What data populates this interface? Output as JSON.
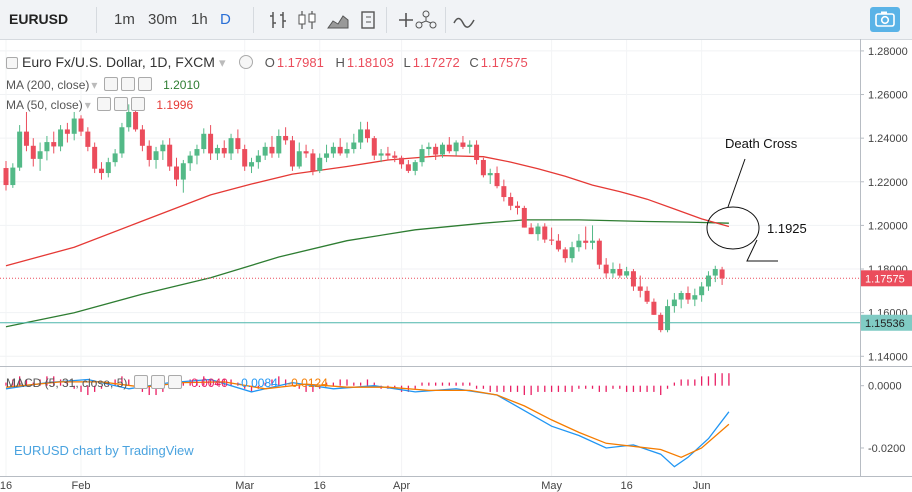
{
  "toolbar": {
    "symbol": "EURUSD",
    "timeframes": [
      "1m",
      "30m",
      "1h",
      "D"
    ],
    "active_timeframe": "D",
    "tools": [
      "bar-style-icon",
      "candle-style-icon",
      "area-style-icon",
      "indicators-icon",
      "compare-icon",
      "templates-icon",
      "line-tool-icon"
    ],
    "camera_icon": "camera-icon"
  },
  "legend": {
    "title": "Euro Fx/U.S. Dollar, 1D, FXCM",
    "open_label": "O",
    "open": "1.17981",
    "high_label": "H",
    "high": "1.18103",
    "low_label": "L",
    "low": "1.17272",
    "close_label": "C",
    "close": "1.17575",
    "ma200_label": "MA (200, close)",
    "ma200_value": "1.2010",
    "ma50_label": "MA (50, close)",
    "ma50_value": "1.1996",
    "macd_label": "MACD (5, 31, close, 5)",
    "macd_hist": "0.0040",
    "macd_line": "-0.0084",
    "macd_signal": "-0.0124"
  },
  "watermark": "EURUSD chart by TradingView",
  "annotations": {
    "death_cross": "Death Cross",
    "level": "1.1925"
  },
  "colors": {
    "up": "#53b987",
    "down": "#eb4d5c",
    "ma50": "#e53935",
    "ma200": "#2e7d32",
    "macd_line": "#2196f3",
    "macd_signal": "#f57c00",
    "support": "#4db6ac",
    "price_tag": "#eb4d5c",
    "support_tag": "#80cbc4"
  },
  "chart_data": {
    "type": "candlestick",
    "price_axis": {
      "ticks": [
        "1.28000",
        "1.26000",
        "1.24000",
        "1.22000",
        "1.20000",
        "1.18000",
        "1.16000",
        "1.14000"
      ],
      "ylim": [
        1.136,
        1.285
      ]
    },
    "last_price": "1.17575",
    "support_level": "1.15536",
    "macd_axis": {
      "ticks": [
        "0.0000",
        "-0.0200"
      ],
      "ylim": [
        -0.029,
        0.006
      ]
    },
    "time_axis": {
      "ticks": [
        {
          "label": "16",
          "i": 0
        },
        {
          "label": "Feb",
          "i": 11
        },
        {
          "label": "Mar",
          "i": 35
        },
        {
          "label": "16",
          "i": 46
        },
        {
          "label": "Apr",
          "i": 58
        },
        {
          "label": "May",
          "i": 80
        },
        {
          "label": "16",
          "i": 91
        },
        {
          "label": "Jun",
          "i": 102
        }
      ]
    },
    "candles": [
      {
        "o": 1.2263,
        "h": 1.2295,
        "l": 1.216,
        "c": 1.2185
      },
      {
        "o": 1.2185,
        "h": 1.2285,
        "l": 1.2172,
        "c": 1.2265
      },
      {
        "o": 1.2265,
        "h": 1.246,
        "l": 1.225,
        "c": 1.243
      },
      {
        "o": 1.243,
        "h": 1.252,
        "l": 1.234,
        "c": 1.2365
      },
      {
        "o": 1.2365,
        "h": 1.24,
        "l": 1.227,
        "c": 1.2305
      },
      {
        "o": 1.2305,
        "h": 1.238,
        "l": 1.225,
        "c": 1.234
      },
      {
        "o": 1.234,
        "h": 1.241,
        "l": 1.2298,
        "c": 1.2382
      },
      {
        "o": 1.2382,
        "h": 1.243,
        "l": 1.233,
        "c": 1.2362
      },
      {
        "o": 1.2362,
        "h": 1.246,
        "l": 1.234,
        "c": 1.244
      },
      {
        "o": 1.244,
        "h": 1.247,
        "l": 1.238,
        "c": 1.242
      },
      {
        "o": 1.242,
        "h": 1.252,
        "l": 1.239,
        "c": 1.249
      },
      {
        "o": 1.249,
        "h": 1.2505,
        "l": 1.241,
        "c": 1.243
      },
      {
        "o": 1.243,
        "h": 1.245,
        "l": 1.234,
        "c": 1.236
      },
      {
        "o": 1.236,
        "h": 1.238,
        "l": 1.224,
        "c": 1.226
      },
      {
        "o": 1.226,
        "h": 1.229,
        "l": 1.221,
        "c": 1.224
      },
      {
        "o": 1.224,
        "h": 1.231,
        "l": 1.222,
        "c": 1.229
      },
      {
        "o": 1.229,
        "h": 1.235,
        "l": 1.227,
        "c": 1.233
      },
      {
        "o": 1.233,
        "h": 1.247,
        "l": 1.231,
        "c": 1.245
      },
      {
        "o": 1.245,
        "h": 1.2555,
        "l": 1.243,
        "c": 1.252
      },
      {
        "o": 1.252,
        "h": 1.254,
        "l": 1.243,
        "c": 1.244
      },
      {
        "o": 1.244,
        "h": 1.246,
        "l": 1.234,
        "c": 1.2365
      },
      {
        "o": 1.2365,
        "h": 1.239,
        "l": 1.227,
        "c": 1.23
      },
      {
        "o": 1.23,
        "h": 1.236,
        "l": 1.226,
        "c": 1.234
      },
      {
        "o": 1.234,
        "h": 1.239,
        "l": 1.23,
        "c": 1.237
      },
      {
        "o": 1.237,
        "h": 1.24,
        "l": 1.225,
        "c": 1.227
      },
      {
        "o": 1.227,
        "h": 1.231,
        "l": 1.218,
        "c": 1.221
      },
      {
        "o": 1.221,
        "h": 1.23,
        "l": 1.215,
        "c": 1.2285
      },
      {
        "o": 1.2285,
        "h": 1.234,
        "l": 1.225,
        "c": 1.232
      },
      {
        "o": 1.232,
        "h": 1.237,
        "l": 1.228,
        "c": 1.235
      },
      {
        "o": 1.235,
        "h": 1.2445,
        "l": 1.233,
        "c": 1.242
      },
      {
        "o": 1.242,
        "h": 1.246,
        "l": 1.23,
        "c": 1.233
      },
      {
        "o": 1.233,
        "h": 1.237,
        "l": 1.23,
        "c": 1.2355
      },
      {
        "o": 1.2355,
        "h": 1.239,
        "l": 1.231,
        "c": 1.233
      },
      {
        "o": 1.233,
        "h": 1.242,
        "l": 1.23,
        "c": 1.24
      },
      {
        "o": 1.24,
        "h": 1.244,
        "l": 1.233,
        "c": 1.235
      },
      {
        "o": 1.235,
        "h": 1.237,
        "l": 1.225,
        "c": 1.227
      },
      {
        "o": 1.227,
        "h": 1.231,
        "l": 1.224,
        "c": 1.229
      },
      {
        "o": 1.229,
        "h": 1.2345,
        "l": 1.226,
        "c": 1.232
      },
      {
        "o": 1.232,
        "h": 1.238,
        "l": 1.23,
        "c": 1.236
      },
      {
        "o": 1.236,
        "h": 1.241,
        "l": 1.231,
        "c": 1.233
      },
      {
        "o": 1.233,
        "h": 1.244,
        "l": 1.231,
        "c": 1.241
      },
      {
        "o": 1.241,
        "h": 1.245,
        "l": 1.237,
        "c": 1.239
      },
      {
        "o": 1.239,
        "h": 1.241,
        "l": 1.225,
        "c": 1.227
      },
      {
        "o": 1.227,
        "h": 1.238,
        "l": 1.226,
        "c": 1.234
      },
      {
        "o": 1.234,
        "h": 1.237,
        "l": 1.231,
        "c": 1.233
      },
      {
        "o": 1.233,
        "h": 1.235,
        "l": 1.223,
        "c": 1.225
      },
      {
        "o": 1.225,
        "h": 1.233,
        "l": 1.224,
        "c": 1.231
      },
      {
        "o": 1.231,
        "h": 1.237,
        "l": 1.229,
        "c": 1.233
      },
      {
        "o": 1.233,
        "h": 1.238,
        "l": 1.231,
        "c": 1.236
      },
      {
        "o": 1.236,
        "h": 1.24,
        "l": 1.232,
        "c": 1.233
      },
      {
        "o": 1.233,
        "h": 1.238,
        "l": 1.231,
        "c": 1.235
      },
      {
        "o": 1.235,
        "h": 1.242,
        "l": 1.233,
        "c": 1.238
      },
      {
        "o": 1.238,
        "h": 1.2475,
        "l": 1.235,
        "c": 1.244
      },
      {
        "o": 1.244,
        "h": 1.2475,
        "l": 1.238,
        "c": 1.24
      },
      {
        "o": 1.24,
        "h": 1.241,
        "l": 1.23,
        "c": 1.232
      },
      {
        "o": 1.232,
        "h": 1.235,
        "l": 1.229,
        "c": 1.233
      },
      {
        "o": 1.233,
        "h": 1.236,
        "l": 1.23,
        "c": 1.232
      },
      {
        "o": 1.232,
        "h": 1.234,
        "l": 1.229,
        "c": 1.231
      },
      {
        "o": 1.231,
        "h": 1.232,
        "l": 1.226,
        "c": 1.228
      },
      {
        "o": 1.228,
        "h": 1.23,
        "l": 1.224,
        "c": 1.225
      },
      {
        "o": 1.225,
        "h": 1.23,
        "l": 1.223,
        "c": 1.229
      },
      {
        "o": 1.229,
        "h": 1.237,
        "l": 1.227,
        "c": 1.235
      },
      {
        "o": 1.235,
        "h": 1.238,
        "l": 1.232,
        "c": 1.236
      },
      {
        "o": 1.236,
        "h": 1.2375,
        "l": 1.23,
        "c": 1.2325
      },
      {
        "o": 1.2325,
        "h": 1.238,
        "l": 1.231,
        "c": 1.237
      },
      {
        "o": 1.237,
        "h": 1.2405,
        "l": 1.233,
        "c": 1.234
      },
      {
        "o": 1.234,
        "h": 1.239,
        "l": 1.232,
        "c": 1.238
      },
      {
        "o": 1.238,
        "h": 1.241,
        "l": 1.235,
        "c": 1.236
      },
      {
        "o": 1.236,
        "h": 1.239,
        "l": 1.233,
        "c": 1.237
      },
      {
        "o": 1.237,
        "h": 1.239,
        "l": 1.228,
        "c": 1.23
      },
      {
        "o": 1.23,
        "h": 1.231,
        "l": 1.222,
        "c": 1.223
      },
      {
        "o": 1.223,
        "h": 1.226,
        "l": 1.219,
        "c": 1.224
      },
      {
        "o": 1.224,
        "h": 1.227,
        "l": 1.217,
        "c": 1.218
      },
      {
        "o": 1.218,
        "h": 1.221,
        "l": 1.211,
        "c": 1.213
      },
      {
        "o": 1.213,
        "h": 1.215,
        "l": 1.207,
        "c": 1.209
      },
      {
        "o": 1.209,
        "h": 1.211,
        "l": 1.205,
        "c": 1.208
      },
      {
        "o": 1.208,
        "h": 1.209,
        "l": 1.199,
        "c": 1.199
      },
      {
        "o": 1.199,
        "h": 1.201,
        "l": 1.196,
        "c": 1.196
      },
      {
        "o": 1.196,
        "h": 1.201,
        "l": 1.193,
        "c": 1.1995
      },
      {
        "o": 1.1995,
        "h": 1.201,
        "l": 1.192,
        "c": 1.1935
      },
      {
        "o": 1.1935,
        "h": 1.199,
        "l": 1.191,
        "c": 1.193
      },
      {
        "o": 1.193,
        "h": 1.196,
        "l": 1.188,
        "c": 1.189
      },
      {
        "o": 1.189,
        "h": 1.19,
        "l": 1.183,
        "c": 1.185
      },
      {
        "o": 1.185,
        "h": 1.1925,
        "l": 1.183,
        "c": 1.19
      },
      {
        "o": 1.19,
        "h": 1.196,
        "l": 1.188,
        "c": 1.193
      },
      {
        "o": 1.193,
        "h": 1.1995,
        "l": 1.189,
        "c": 1.192
      },
      {
        "o": 1.192,
        "h": 1.2,
        "l": 1.189,
        "c": 1.193
      },
      {
        "o": 1.193,
        "h": 1.194,
        "l": 1.18,
        "c": 1.182
      },
      {
        "o": 1.182,
        "h": 1.185,
        "l": 1.176,
        "c": 1.178
      },
      {
        "o": 1.178,
        "h": 1.183,
        "l": 1.176,
        "c": 1.18
      },
      {
        "o": 1.18,
        "h": 1.1825,
        "l": 1.176,
        "c": 1.177
      },
      {
        "o": 1.177,
        "h": 1.181,
        "l": 1.176,
        "c": 1.179
      },
      {
        "o": 1.179,
        "h": 1.18,
        "l": 1.17,
        "c": 1.172
      },
      {
        "o": 1.172,
        "h": 1.177,
        "l": 1.167,
        "c": 1.17
      },
      {
        "o": 1.17,
        "h": 1.172,
        "l": 1.164,
        "c": 1.165
      },
      {
        "o": 1.165,
        "h": 1.1665,
        "l": 1.159,
        "c": 1.159
      },
      {
        "o": 1.159,
        "h": 1.16,
        "l": 1.151,
        "c": 1.152
      },
      {
        "o": 1.152,
        "h": 1.166,
        "l": 1.151,
        "c": 1.163
      },
      {
        "o": 1.163,
        "h": 1.169,
        "l": 1.16,
        "c": 1.166
      },
      {
        "o": 1.166,
        "h": 1.17,
        "l": 1.162,
        "c": 1.169
      },
      {
        "o": 1.169,
        "h": 1.172,
        "l": 1.164,
        "c": 1.166
      },
      {
        "o": 1.166,
        "h": 1.171,
        "l": 1.163,
        "c": 1.168
      },
      {
        "o": 1.168,
        "h": 1.174,
        "l": 1.165,
        "c": 1.172
      },
      {
        "o": 1.172,
        "h": 1.179,
        "l": 1.17,
        "c": 1.177
      },
      {
        "o": 1.177,
        "h": 1.1815,
        "l": 1.174,
        "c": 1.18
      },
      {
        "o": 1.1798,
        "h": 1.181,
        "l": 1.1727,
        "c": 1.1757
      }
    ],
    "ma50": [
      [
        0,
        1.1815
      ],
      [
        10,
        1.19
      ],
      [
        20,
        1.202
      ],
      [
        30,
        1.214
      ],
      [
        36,
        1.219
      ],
      [
        42,
        1.2235
      ],
      [
        50,
        1.227
      ],
      [
        56,
        1.23
      ],
      [
        64,
        1.232
      ],
      [
        70,
        1.2315
      ],
      [
        74,
        1.229
      ],
      [
        78,
        1.226
      ],
      [
        82,
        1.2225
      ],
      [
        86,
        1.2185
      ],
      [
        90,
        1.2155
      ],
      [
        94,
        1.212
      ],
      [
        98,
        1.2075
      ],
      [
        102,
        1.203
      ],
      [
        106,
        1.1995
      ]
    ],
    "ma200": [
      [
        0,
        1.1535
      ],
      [
        10,
        1.16
      ],
      [
        20,
        1.1685
      ],
      [
        30,
        1.176
      ],
      [
        40,
        1.1855
      ],
      [
        50,
        1.193
      ],
      [
        60,
        1.198
      ],
      [
        70,
        1.201
      ],
      [
        76,
        1.2025
      ],
      [
        84,
        1.2025
      ],
      [
        94,
        1.2018
      ],
      [
        100,
        1.2015
      ],
      [
        106,
        1.201
      ]
    ],
    "macd": [
      [
        0,
        -0.001
      ],
      [
        6,
        0.001
      ],
      [
        12,
        0.002
      ],
      [
        18,
        -0.001
      ],
      [
        24,
        0.001
      ],
      [
        30,
        0.002
      ],
      [
        36,
        -0.002
      ],
      [
        42,
        0.001
      ],
      [
        48,
        -0.001
      ],
      [
        54,
        0.0
      ],
      [
        60,
        -0.002
      ],
      [
        66,
        -0.001
      ],
      [
        72,
        -0.003
      ],
      [
        76,
        -0.008
      ],
      [
        80,
        -0.013
      ],
      [
        84,
        -0.016
      ],
      [
        88,
        -0.02
      ],
      [
        92,
        -0.019
      ],
      [
        96,
        -0.022
      ],
      [
        98,
        -0.026
      ],
      [
        100,
        -0.023
      ],
      [
        103,
        -0.017
      ],
      [
        106,
        -0.0084
      ]
    ],
    "macd_signal": [
      [
        0,
        -0.0005
      ],
      [
        8,
        0.0012
      ],
      [
        14,
        0.0012
      ],
      [
        20,
        -0.0005
      ],
      [
        26,
        0.001
      ],
      [
        32,
        0.0012
      ],
      [
        38,
        -0.001
      ],
      [
        44,
        0.0005
      ],
      [
        50,
        -0.0005
      ],
      [
        56,
        -0.0005
      ],
      [
        62,
        -0.0015
      ],
      [
        68,
        -0.0015
      ],
      [
        72,
        -0.003
      ],
      [
        76,
        -0.0065
      ],
      [
        80,
        -0.011
      ],
      [
        84,
        -0.015
      ],
      [
        88,
        -0.0185
      ],
      [
        92,
        -0.0195
      ],
      [
        96,
        -0.0205
      ],
      [
        99,
        -0.023
      ],
      [
        102,
        -0.02
      ],
      [
        106,
        -0.0124
      ]
    ],
    "macd_hist": [
      0.001,
      0.002,
      0.003,
      0.002,
      0.001,
      0.002,
      0.003,
      0.003,
      0.002,
      0.001,
      -0.001,
      -0.002,
      -0.003,
      -0.002,
      -0.001,
      0.001,
      0.002,
      0.003,
      0.002,
      0.001,
      -0.002,
      -0.003,
      -0.003,
      -0.002,
      -0.001,
      -0.001,
      0.001,
      0.002,
      0.002,
      0.003,
      0.002,
      0.001,
      0.002,
      0.002,
      0.001,
      -0.001,
      -0.002,
      -0.001,
      0.001,
      0.002,
      0.003,
      0.002,
      0.001,
      -0.001,
      -0.002,
      -0.002,
      -0.001,
      0.001,
      0.001,
      0.002,
      0.002,
      0.001,
      0.001,
      0.002,
      0.001,
      -0.001,
      -0.001,
      -0.001,
      -0.002,
      -0.002,
      -0.001,
      0.001,
      0.001,
      0.001,
      0.001,
      0.001,
      0.001,
      0.001,
      0.001,
      -0.001,
      -0.001,
      -0.002,
      -0.002,
      -0.002,
      -0.002,
      -0.002,
      -0.003,
      -0.003,
      -0.002,
      -0.002,
      -0.002,
      -0.002,
      -0.002,
      -0.002,
      -0.001,
      -0.001,
      -0.001,
      -0.002,
      -0.002,
      -0.001,
      -0.001,
      -0.002,
      -0.002,
      -0.002,
      -0.002,
      -0.002,
      -0.003,
      -0.001,
      0.001,
      0.002,
      0.002,
      0.002,
      0.003,
      0.003,
      0.004,
      0.004,
      0.004
    ]
  }
}
